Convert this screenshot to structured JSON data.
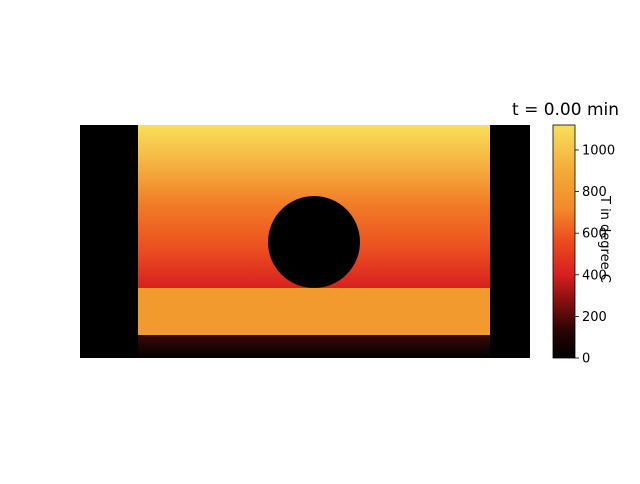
{
  "chart_data": {
    "type": "heatmap",
    "title": "t = 0.00 min",
    "colorbar": {
      "label": "T in degree C",
      "range": [
        0,
        1120
      ],
      "ticks": [
        0,
        200,
        400,
        600,
        800,
        1000
      ],
      "tick_labels": [
        "0",
        "200",
        "400",
        "600",
        "800",
        "1000"
      ],
      "colormap": "hot/afmhot-like"
    },
    "field_description": {
      "outer_walls_T": 0,
      "upper_region_T_range": [
        1120,
        300
      ],
      "lower_band_T": 850,
      "bottom_strip_T": 0,
      "circular_inclusion_T": 0
    },
    "colors": {
      "c0": "#000000",
      "c200": "#3a0a0a",
      "c300": "#d82020",
      "c400": "#ea3a1c",
      "c600": "#f06020",
      "c800": "#f4a030",
      "c1000": "#f6c84a",
      "c1120": "#f8e05a"
    }
  }
}
